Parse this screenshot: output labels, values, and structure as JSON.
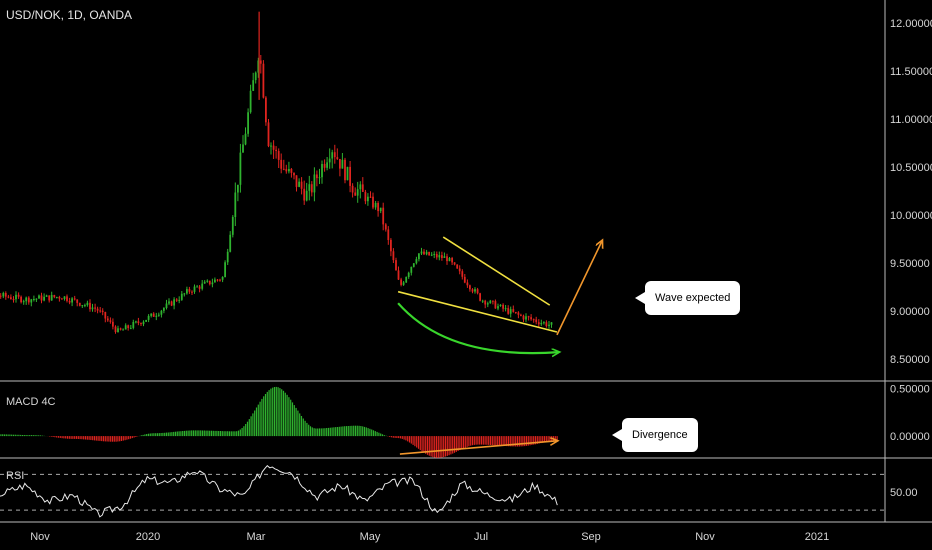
{
  "header": {
    "symbol": "USD/NOK, 1D, OANDA"
  },
  "panes": {
    "macd_label": "MACD 4C",
    "rsi_label": "RSI"
  },
  "callouts": {
    "wave": "Wave expected",
    "divergence": "Divergence"
  },
  "colors": {
    "up": "#2fb32f",
    "down": "#e0241f",
    "wedge": "#f0e040",
    "curve": "#39d62c",
    "arrow": "#f0962c",
    "rsi_line": "#e8e8e8"
  },
  "chart_data": [
    {
      "type": "candlestick",
      "title": "USD/NOK, 1D, OANDA",
      "xlabel": "",
      "ylabel": "",
      "x_ticks": [
        "Nov",
        "2020",
        "Mar",
        "May",
        "Jul",
        "Sep",
        "Nov",
        "2021"
      ],
      "y_ticks": [
        12.0,
        11.5,
        11.0,
        10.5,
        10.0,
        9.5,
        9.0,
        8.5
      ],
      "y_tick_labels": [
        "12.00000",
        "11.50000",
        "11.00000",
        "10.50000",
        "10.00000",
        "9.50000",
        "9.00000",
        "8.50000"
      ],
      "ylim": [
        8.3,
        12.2
      ],
      "close_path": [
        {
          "date": "2019-10-01",
          "close": 9.14
        },
        {
          "date": "2019-10-20",
          "close": 9.18
        },
        {
          "date": "2019-11-10",
          "close": 9.12
        },
        {
          "date": "2019-12-01",
          "close": 9.15
        },
        {
          "date": "2019-12-20",
          "close": 9.02
        },
        {
          "date": "2020-01-01",
          "close": 8.78
        },
        {
          "date": "2020-01-20",
          "close": 8.95
        },
        {
          "date": "2020-02-10",
          "close": 9.22
        },
        {
          "date": "2020-02-28",
          "close": 9.35
        },
        {
          "date": "2020-03-09",
          "close": 10.6
        },
        {
          "date": "2020-03-19",
          "close": 11.75
        },
        {
          "date": "2020-03-24",
          "close": 10.8
        },
        {
          "date": "2020-04-01",
          "close": 10.5
        },
        {
          "date": "2020-04-15",
          "close": 10.2
        },
        {
          "date": "2020-04-28",
          "close": 10.72
        },
        {
          "date": "2020-05-10",
          "close": 10.3
        },
        {
          "date": "2020-05-25",
          "close": 10.05
        },
        {
          "date": "2020-06-05",
          "close": 9.25
        },
        {
          "date": "2020-06-15",
          "close": 9.6
        },
        {
          "date": "2020-07-01",
          "close": 9.55
        },
        {
          "date": "2020-07-20",
          "close": 9.12
        },
        {
          "date": "2020-08-10",
          "close": 8.95
        },
        {
          "date": "2020-08-28",
          "close": 8.85
        }
      ],
      "annotations": [
        {
          "kind": "wedge_line",
          "from": {
            "date": "2020-06-29",
            "value": 9.77
          },
          "to": {
            "date": "2020-08-27",
            "value": 9.06
          }
        },
        {
          "kind": "wedge_line",
          "from": {
            "date": "2020-06-04",
            "value": 9.2
          },
          "to": {
            "date": "2020-08-31",
            "value": 8.78
          }
        },
        {
          "kind": "curved_arrow",
          "from": {
            "date": "2020-06-04",
            "value": 9.08
          },
          "to": {
            "date": "2020-09-01",
            "value": 8.57
          }
        },
        {
          "kind": "arrow",
          "from": {
            "date": "2020-08-31",
            "value": 8.75
          },
          "to": {
            "date": "2020-09-25",
            "value": 9.73
          },
          "label": "Wave expected"
        }
      ]
    },
    {
      "type": "bar",
      "title": "MACD 4C",
      "y_ticks": [
        0.5,
        0.0
      ],
      "y_tick_labels": [
        "0.50000",
        "0.00000"
      ],
      "ylim": [
        -0.2,
        0.55
      ],
      "series": [
        {
          "values": [
            0.01,
            0.02,
            0.01,
            -0.03,
            -0.06,
            0.03,
            0.06,
            0.05,
            0.52,
            0.08,
            0.11,
            -0.02,
            -0.23,
            -0.09,
            -0.11,
            -0.05
          ]
        }
      ],
      "annotations": [
        {
          "kind": "arrow",
          "from": {
            "date": "2020-06-05",
            "value": -0.19
          },
          "to": {
            "date": "2020-08-31",
            "value": -0.05
          },
          "label": "Divergence"
        }
      ]
    },
    {
      "type": "line",
      "title": "RSI",
      "y_ticks": [
        50.0
      ],
      "y_tick_labels": [
        "50.00"
      ],
      "ylim": [
        20,
        85
      ],
      "reference_lines": [
        70,
        30
      ],
      "series": [
        {
          "values": [
            55,
            62,
            48,
            58,
            40,
            47,
            25,
            35,
            65,
            60,
            75,
            54,
            45,
            82,
            72,
            45,
            58,
            40,
            60,
            63,
            25,
            60,
            48,
            41,
            58,
            38
          ]
        }
      ]
    }
  ]
}
